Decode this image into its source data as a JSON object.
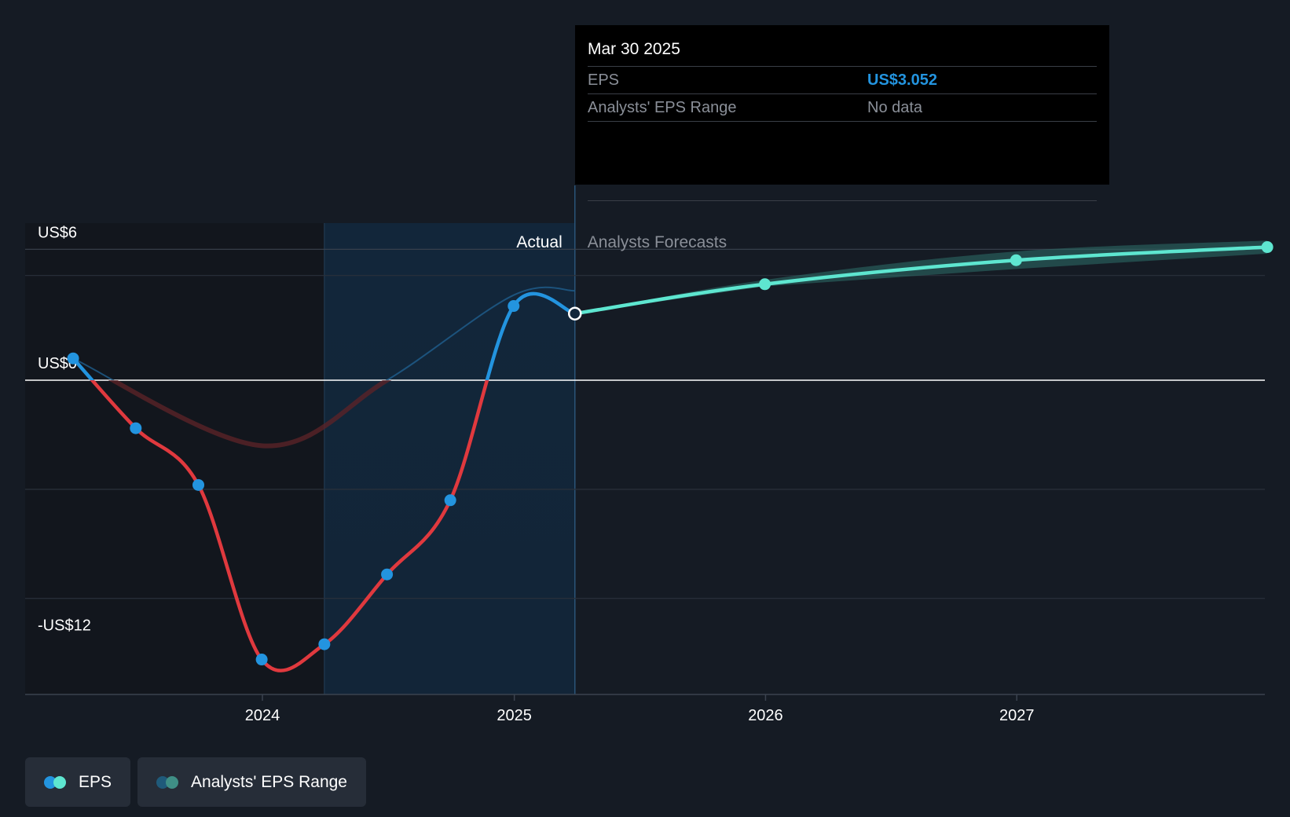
{
  "tooltip": {
    "date": "Mar 30 2025",
    "eps_label": "EPS",
    "eps_value": "US$3.052",
    "range_label": "Analysts' EPS Range",
    "range_value": "No data"
  },
  "legend": {
    "eps_label": "EPS",
    "range_label": "Analysts' EPS Range"
  },
  "colors": {
    "background": "#151b24",
    "actual_positive": "#2394df",
    "actual_negative": "#e0393e",
    "forecast": "#5ee6d0",
    "range_band": "#2d6f6a",
    "highlight_band": "#12263a"
  },
  "chart_data": {
    "type": "line",
    "y_tick_labels": [
      {
        "value": 6,
        "label": "US$6"
      },
      {
        "value": 0,
        "label": "US$0"
      },
      {
        "value": -12,
        "label": "-US$12"
      }
    ],
    "x_tick_labels": [
      "2024",
      "2025",
      "2026",
      "2027"
    ],
    "ylim": [
      -14.4,
      7.2
    ],
    "grid": true,
    "legend_position": "bottom-left",
    "section_labels": {
      "actual": "Actual",
      "forecast": "Analysts Forecasts"
    },
    "series": [
      {
        "name": "EPS",
        "kind": "actual",
        "points": [
          {
            "date": "2023-04-01",
            "value": 1.0
          },
          {
            "date": "2023-07-01",
            "value": -2.2
          },
          {
            "date": "2023-09-30",
            "value": -4.8
          },
          {
            "date": "2023-12-31",
            "value": -12.8
          },
          {
            "date": "2024-03-31",
            "value": -12.1
          },
          {
            "date": "2024-06-30",
            "value": -8.9
          },
          {
            "date": "2024-09-30",
            "value": -5.5
          },
          {
            "date": "2024-12-31",
            "value": 3.4
          },
          {
            "date": "2025-03-30",
            "value": 3.052
          }
        ]
      },
      {
        "name": "EPS",
        "kind": "forecast",
        "points": [
          {
            "date": "2025-03-30",
            "value": 3.052
          },
          {
            "date": "2025-12-31",
            "value": 4.4
          },
          {
            "date": "2026-12-31",
            "value": 5.5
          },
          {
            "date": "2027-12-31",
            "value": 6.1
          }
        ]
      }
    ],
    "range_band": [
      {
        "date": "2025-12-31",
        "low": 4.3,
        "high": 4.6
      },
      {
        "date": "2026-12-31",
        "low": 5.1,
        "high": 5.9
      },
      {
        "date": "2027-12-31",
        "low": 5.8,
        "high": 6.4
      }
    ],
    "past_estimate_line": [
      {
        "date": "2023-04-01",
        "value": 1.0
      },
      {
        "date": "2023-12-31",
        "value": -3.0
      },
      {
        "date": "2024-06-30",
        "value": 0.0
      },
      {
        "date": "2024-12-31",
        "value": 3.9
      },
      {
        "date": "2025-03-30",
        "value": 4.1
      }
    ],
    "actual_highlight_start": "2024-03-31",
    "tooltip_date": "2025-03-30"
  }
}
